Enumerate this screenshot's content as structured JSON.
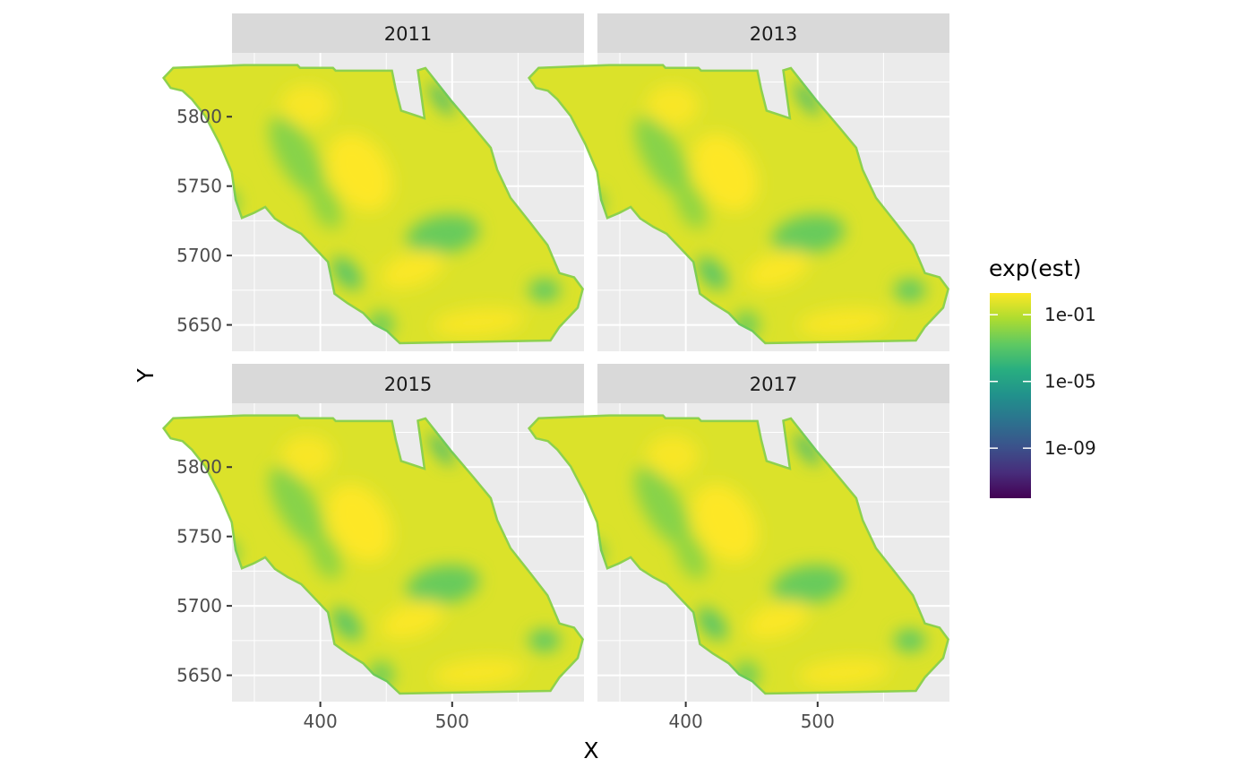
{
  "chart_data": {
    "type": "heatmap",
    "facets": [
      {
        "label": "2011"
      },
      {
        "label": "2013"
      },
      {
        "label": "2015"
      },
      {
        "label": "2017"
      }
    ],
    "xlabel": "X",
    "ylabel": "Y",
    "x_ticks": [
      {
        "value": 400,
        "label": "400"
      },
      {
        "value": 500,
        "label": "500"
      }
    ],
    "y_ticks": [
      {
        "value": 5650,
        "label": "5650"
      },
      {
        "value": 5700,
        "label": "5700"
      },
      {
        "value": 5750,
        "label": "5750"
      },
      {
        "value": 5800,
        "label": "5800"
      }
    ],
    "xlim": [
      333,
      600
    ],
    "ylim": [
      5631,
      5846
    ],
    "x_minor": [
      350,
      450,
      550
    ],
    "y_minor": [
      5675,
      5725,
      5775,
      5825
    ],
    "grid": true,
    "legend": {
      "title": "exp(est)",
      "placement": "right",
      "scale": "log10",
      "colormap": "viridis",
      "range": [
        1e-12,
        2
      ],
      "ticks": [
        {
          "value": 1e-09,
          "label": "1e-09"
        },
        {
          "value": 1e-05,
          "label": "1e-05"
        },
        {
          "value": 0.1,
          "label": "1e-01"
        }
      ]
    },
    "colors": {
      "panel_bg": "#ebebeb",
      "strip_bg": "#d9d9d9",
      "grid": "#ffffff",
      "viridis": [
        "#440154",
        "#472d7b",
        "#3b528b",
        "#2c728e",
        "#21918c",
        "#28ae80",
        "#5ec962",
        "#addc30",
        "#fde725"
      ]
    },
    "region_outline": [
      [
        342,
        5838
      ],
      [
        383,
        5838
      ],
      [
        385,
        5836
      ],
      [
        410,
        5836
      ],
      [
        412,
        5834
      ],
      [
        455,
        5834
      ],
      [
        458,
        5820
      ],
      [
        462,
        5805
      ],
      [
        478,
        5800
      ],
      [
        473,
        5834
      ],
      [
        480,
        5836
      ],
      [
        500,
        5812
      ],
      [
        517,
        5793
      ],
      [
        530,
        5778
      ],
      [
        535,
        5762
      ],
      [
        545,
        5742
      ],
      [
        560,
        5724
      ],
      [
        573,
        5708
      ],
      [
        582,
        5688
      ],
      [
        593,
        5685
      ],
      [
        600,
        5676
      ],
      [
        596,
        5662
      ],
      [
        582,
        5648
      ],
      [
        575,
        5638
      ],
      [
        460,
        5636
      ],
      [
        450,
        5645
      ],
      [
        440,
        5650
      ],
      [
        432,
        5658
      ],
      [
        420,
        5665
      ],
      [
        410,
        5672
      ],
      [
        405,
        5695
      ],
      [
        395,
        5705
      ],
      [
        385,
        5715
      ],
      [
        375,
        5720
      ],
      [
        365,
        5726
      ],
      [
        358,
        5734
      ],
      [
        350,
        5730
      ],
      [
        340,
        5726
      ],
      [
        335,
        5740
      ],
      [
        332,
        5760
      ],
      [
        323,
        5780
      ],
      [
        312,
        5800
      ],
      [
        302,
        5812
      ],
      [
        295,
        5818
      ],
      [
        286,
        5820
      ],
      [
        280,
        5828
      ],
      [
        288,
        5836
      ]
    ],
    "field_features": [
      {
        "cx": 382,
        "cy": 5772,
        "rx": 14,
        "ry": 32,
        "rot": -30,
        "logv": -2.0
      },
      {
        "cx": 404,
        "cy": 5736,
        "rx": 10,
        "ry": 18,
        "rot": -25,
        "logv": -1.8
      },
      {
        "cx": 493,
        "cy": 5715,
        "rx": 28,
        "ry": 14,
        "rot": -10,
        "logv": -2.6
      },
      {
        "cx": 570,
        "cy": 5675,
        "rx": 12,
        "ry": 8,
        "rot": 0,
        "logv": -2.8
      },
      {
        "cx": 492,
        "cy": 5813,
        "rx": 5,
        "ry": 14,
        "rot": -35,
        "logv": -3.6
      },
      {
        "cx": 420,
        "cy": 5687,
        "rx": 8,
        "ry": 14,
        "rot": -40,
        "logv": -3.0
      },
      {
        "cx": 446,
        "cy": 5650,
        "rx": 10,
        "ry": 10,
        "rot": 0,
        "logv": -2.4
      },
      {
        "cx": 330,
        "cy": 5738,
        "rx": 8,
        "ry": 10,
        "rot": 0,
        "logv": -2.3
      },
      {
        "cx": 430,
        "cy": 5760,
        "rx": 22,
        "ry": 30,
        "rot": -30,
        "logv": 0.3
      },
      {
        "cx": 470,
        "cy": 5690,
        "rx": 25,
        "ry": 12,
        "rot": -20,
        "logv": 0.25
      },
      {
        "cx": 520,
        "cy": 5652,
        "rx": 35,
        "ry": 10,
        "rot": -5,
        "logv": 0.2
      },
      {
        "cx": 390,
        "cy": 5808,
        "rx": 20,
        "ry": 15,
        "rot": 0,
        "logv": 0.2
      }
    ]
  }
}
